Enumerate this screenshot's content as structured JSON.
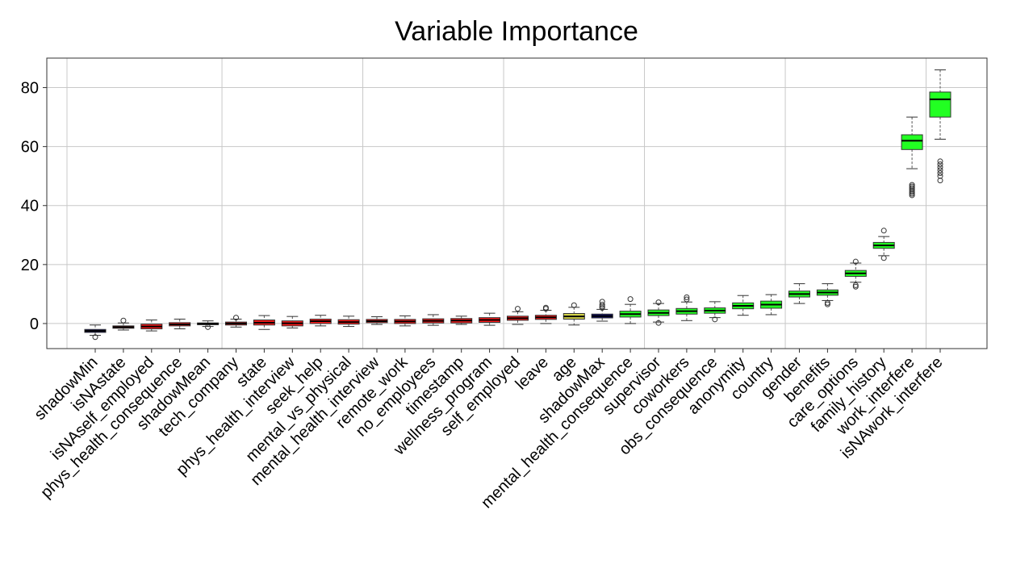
{
  "chart_data": {
    "type": "boxplot",
    "title": "Variable Importance",
    "xlabel": "",
    "ylabel": "",
    "ylim": [
      -8.5,
      90
    ],
    "yticks": [
      0,
      20,
      40,
      60,
      80
    ],
    "grid": true,
    "legend": "none",
    "colors": {
      "shadow": "#0b0b6e",
      "rejected": "#ff1a1a",
      "tentative": "#d6d64a",
      "confirmed": "#22ff22"
    },
    "boxes": [
      {
        "name": "shadowMin",
        "status": "shadow",
        "whisker_low": -4.0,
        "q1": -3.0,
        "median": -2.5,
        "q3": -2.0,
        "whisker_high": -0.5,
        "outliers": [
          -4.6
        ]
      },
      {
        "name": "isNAstate",
        "status": "rejected",
        "whisker_low": -2.2,
        "q1": -1.6,
        "median": -1.2,
        "q3": -0.8,
        "whisker_high": 0.2,
        "outliers": [
          1.0
        ]
      },
      {
        "name": "isNAself_employed",
        "status": "rejected",
        "whisker_low": -2.5,
        "q1": -1.8,
        "median": -1.0,
        "q3": -0.2,
        "whisker_high": 1.2,
        "outliers": []
      },
      {
        "name": "phys_health_consequence",
        "status": "rejected",
        "whisker_low": -1.8,
        "q1": -0.8,
        "median": -0.3,
        "q3": 0.3,
        "whisker_high": 1.5,
        "outliers": []
      },
      {
        "name": "shadowMean",
        "status": "shadow",
        "whisker_low": -1.0,
        "q1": -0.4,
        "median": -0.1,
        "q3": 0.2,
        "whisker_high": 0.9,
        "outliers": [
          -1.2
        ]
      },
      {
        "name": "tech_company",
        "status": "rejected",
        "whisker_low": -1.2,
        "q1": -0.5,
        "median": 0.0,
        "q3": 0.5,
        "whisker_high": 1.5,
        "outliers": [
          2.0
        ]
      },
      {
        "name": "state",
        "status": "rejected",
        "whisker_low": -2.0,
        "q1": -0.5,
        "median": 0.3,
        "q3": 1.2,
        "whisker_high": 2.7,
        "outliers": []
      },
      {
        "name": "phys_health_interview",
        "status": "rejected",
        "whisker_low": -1.5,
        "q1": -0.8,
        "median": 0.1,
        "q3": 0.9,
        "whisker_high": 2.4,
        "outliers": []
      },
      {
        "name": "seek_help",
        "status": "rejected",
        "whisker_low": -0.8,
        "q1": 0.0,
        "median": 0.8,
        "q3": 1.5,
        "whisker_high": 2.8,
        "outliers": []
      },
      {
        "name": "mental_vs_physical",
        "status": "rejected",
        "whisker_low": -1.0,
        "q1": -0.2,
        "median": 0.5,
        "q3": 1.3,
        "whisker_high": 2.5,
        "outliers": []
      },
      {
        "name": "mental_health_interview",
        "status": "rejected",
        "whisker_low": -0.3,
        "q1": 0.3,
        "median": 0.8,
        "q3": 1.4,
        "whisker_high": 2.3,
        "outliers": []
      },
      {
        "name": "remote_work",
        "status": "rejected",
        "whisker_low": -0.8,
        "q1": 0.0,
        "median": 0.7,
        "q3": 1.4,
        "whisker_high": 2.6,
        "outliers": []
      },
      {
        "name": "no_employees",
        "status": "rejected",
        "whisker_low": -0.6,
        "q1": 0.2,
        "median": 0.9,
        "q3": 1.6,
        "whisker_high": 3.0,
        "outliers": []
      },
      {
        "name": "timestamp",
        "status": "rejected",
        "whisker_low": -0.3,
        "q1": 0.2,
        "median": 1.0,
        "q3": 1.7,
        "whisker_high": 2.5,
        "outliers": []
      },
      {
        "name": "wellness_program",
        "status": "rejected",
        "whisker_low": -0.6,
        "q1": 0.4,
        "median": 1.2,
        "q3": 2.0,
        "whisker_high": 3.5,
        "outliers": []
      },
      {
        "name": "self_employed",
        "status": "rejected",
        "whisker_low": -0.3,
        "q1": 1.1,
        "median": 1.8,
        "q3": 2.5,
        "whisker_high": 4.0,
        "outliers": [
          5.0
        ]
      },
      {
        "name": "leave",
        "status": "rejected",
        "whisker_low": 0.0,
        "q1": 1.4,
        "median": 2.1,
        "q3": 2.8,
        "whisker_high": 4.5,
        "outliers": [
          5.0,
          5.4
        ]
      },
      {
        "name": "age",
        "status": "tentative",
        "whisker_low": -0.5,
        "q1": 1.5,
        "median": 2.4,
        "q3": 3.4,
        "whisker_high": 5.5,
        "outliers": [
          6.2
        ]
      },
      {
        "name": "shadowMax",
        "status": "shadow",
        "whisker_low": 0.8,
        "q1": 1.9,
        "median": 2.5,
        "q3": 3.2,
        "whisker_high": 4.8,
        "outliers": [
          5.3,
          5.8,
          6.4,
          7.4
        ]
      },
      {
        "name": "mental_health_consequence",
        "status": "confirmed",
        "whisker_low": 0.0,
        "q1": 2.2,
        "median": 3.2,
        "q3": 4.2,
        "whisker_high": 6.5,
        "outliers": [
          8.3
        ]
      },
      {
        "name": "supervisor",
        "status": "confirmed",
        "whisker_low": 0.5,
        "q1": 2.7,
        "median": 3.6,
        "q3": 4.6,
        "whisker_high": 6.8,
        "outliers": [
          7.2,
          0.2
        ]
      },
      {
        "name": "coworkers",
        "status": "confirmed",
        "whisker_low": 1.0,
        "q1": 3.2,
        "median": 4.2,
        "q3": 5.1,
        "whisker_high": 7.3,
        "outliers": [
          8.2,
          8.9
        ]
      },
      {
        "name": "obs_consequence",
        "status": "confirmed",
        "whisker_low": 2.0,
        "q1": 3.5,
        "median": 4.4,
        "q3": 5.3,
        "whisker_high": 7.4,
        "outliers": [
          1.4
        ]
      },
      {
        "name": "anonymity",
        "status": "confirmed",
        "whisker_low": 2.8,
        "q1": 5.0,
        "median": 6.0,
        "q3": 7.0,
        "whisker_high": 9.5,
        "outliers": []
      },
      {
        "name": "country",
        "status": "confirmed",
        "whisker_low": 3.0,
        "q1": 5.2,
        "median": 6.4,
        "q3": 7.6,
        "whisker_high": 9.8,
        "outliers": []
      },
      {
        "name": "gender",
        "status": "confirmed",
        "whisker_low": 6.8,
        "q1": 9.0,
        "median": 10.0,
        "q3": 11.0,
        "whisker_high": 13.5,
        "outliers": []
      },
      {
        "name": "benefits",
        "status": "confirmed",
        "whisker_low": 7.8,
        "q1": 9.6,
        "median": 10.5,
        "q3": 11.4,
        "whisker_high": 13.5,
        "outliers": [
          6.5,
          7.0
        ]
      },
      {
        "name": "care_options",
        "status": "confirmed",
        "whisker_low": 14.0,
        "q1": 16.0,
        "median": 17.0,
        "q3": 18.0,
        "whisker_high": 20.5,
        "outliers": [
          12.5,
          13.0,
          21.0
        ]
      },
      {
        "name": "family_history",
        "status": "confirmed",
        "whisker_low": 23.0,
        "q1": 25.5,
        "median": 26.5,
        "q3": 27.5,
        "whisker_high": 29.5,
        "outliers": [
          22.2,
          31.5
        ]
      },
      {
        "name": "work_interfere",
        "status": "confirmed",
        "whisker_low": 52.5,
        "q1": 59.0,
        "median": 62.0,
        "q3": 64.0,
        "whisker_high": 70.0,
        "outliers": [
          43.5,
          44.0,
          44.5,
          45.0,
          45.5,
          46.0,
          46.5,
          47.0
        ]
      },
      {
        "name": "isNAwork_interfere",
        "status": "confirmed",
        "whisker_low": 62.5,
        "q1": 70.0,
        "median": 76.0,
        "q3": 78.5,
        "whisker_high": 86.0,
        "outliers": [
          48.5,
          50.0,
          51.0,
          52.0,
          53.0,
          54.0,
          55.0
        ]
      }
    ]
  }
}
